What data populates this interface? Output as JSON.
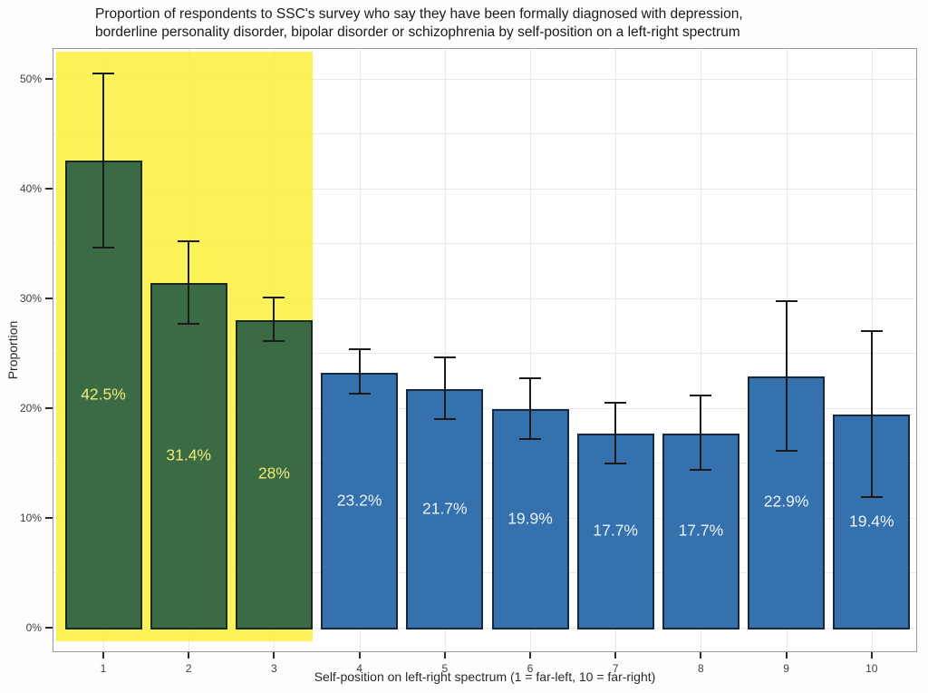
{
  "title": {
    "line1": "Proportion of respondents to SSC's survey who say they have been formally diagnosed with depression,",
    "line2": "borderline personality disorder, bipolar disorder or schizophrenia by self-position on a left-right spectrum"
  },
  "axes": {
    "y_title": "Proportion",
    "x_title": "Self-position on left-right spectrum (1 = far-left, 10 = far-right)",
    "y_tick_labels": [
      "0%",
      "10%",
      "20%",
      "30%",
      "40%",
      "50%"
    ],
    "x_tick_labels": [
      "1",
      "2",
      "3",
      "4",
      "5",
      "6",
      "7",
      "8",
      "9",
      "10"
    ]
  },
  "chart_data": {
    "type": "bar",
    "title": "Proportion of respondents to SSC's survey who say they have been formally diagnosed with depression, borderline personality disorder, bipolar disorder or schizophrenia by self-position on a left-right spectrum",
    "xlabel": "Self-position on left-right spectrum (1 = far-left, 10 = far-right)",
    "ylabel": "Proportion",
    "categories": [
      1,
      2,
      3,
      4,
      5,
      6,
      7,
      8,
      9,
      10
    ],
    "values": [
      42.5,
      31.4,
      28,
      23.2,
      21.7,
      19.9,
      17.7,
      17.7,
      22.9,
      19.4
    ],
    "value_labels": [
      "42.5%",
      "31.4%",
      "28%",
      "23.2%",
      "21.7%",
      "19.9%",
      "17.7%",
      "17.7%",
      "22.9%",
      "19.4%"
    ],
    "ci_low": [
      34.5,
      27.6,
      26.0,
      21.2,
      18.9,
      17.1,
      14.9,
      14.3,
      16.0,
      11.8
    ],
    "ci_high": [
      50.5,
      35.3,
      30.1,
      25.4,
      24.7,
      22.8,
      20.6,
      21.2,
      29.8,
      27.1
    ],
    "groups": [
      "left",
      "left",
      "left",
      "other",
      "other",
      "other",
      "other",
      "other",
      "other",
      "other"
    ],
    "y_ticks_pct": [
      0,
      10,
      20,
      30,
      40,
      50
    ],
    "grid_step_pct": 5,
    "ylim": [
      -2.2,
      52.8
    ],
    "legend": "none",
    "grid": "on",
    "highlight": {
      "x_from": 0.45,
      "x_to": 3.45,
      "y_from_pct": -1.2,
      "y_to_pct": 52.4
    },
    "colors": {
      "left_fill": "#3A6B45",
      "left_border": "#1C2A1B",
      "left_label": "#EFEA76",
      "other_fill": "#3571AC",
      "other_border": "#16293F",
      "other_label": "#E9F1FA",
      "highlight_fill": "#FAEE3C",
      "highlight_alpha": 0.85,
      "errorbar": "#1A1A1A",
      "gridline": "#E9E9E9",
      "panel_border": "#9B9B9B"
    }
  }
}
